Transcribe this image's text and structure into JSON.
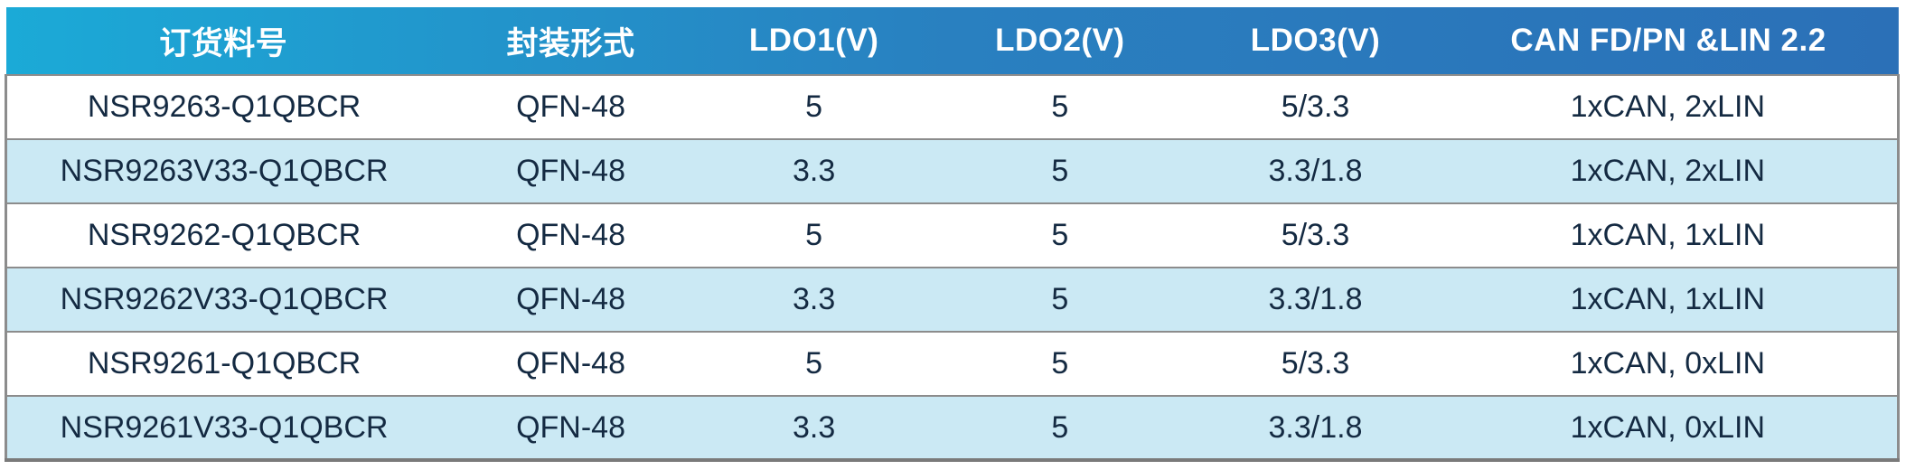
{
  "table": {
    "columns": [
      {
        "key": "part-number",
        "label": "订货料号"
      },
      {
        "key": "package",
        "label": "封装形式"
      },
      {
        "key": "ldo1",
        "label": "LDO1(V)"
      },
      {
        "key": "ldo2",
        "label": "LDO2(V)"
      },
      {
        "key": "ldo3",
        "label": "LDO3(V)"
      },
      {
        "key": "can-lin",
        "label": "CAN FD/PN &LIN 2.2"
      }
    ],
    "rows": [
      [
        "NSR9263-Q1QBCR",
        "QFN-48",
        "5",
        "5",
        "5/3.3",
        "1xCAN, 2xLIN"
      ],
      [
        "NSR9263V33-Q1QBCR",
        "QFN-48",
        "3.3",
        "5",
        "3.3/1.8",
        "1xCAN, 2xLIN"
      ],
      [
        "NSR9262-Q1QBCR",
        "QFN-48",
        "5",
        "5",
        "5/3.3",
        "1xCAN, 1xLIN"
      ],
      [
        "NSR9262V33-Q1QBCR",
        "QFN-48",
        "3.3",
        "5",
        "3.3/1.8",
        "1xCAN, 1xLIN"
      ],
      [
        "NSR9261-Q1QBCR",
        "QFN-48",
        "5",
        "5",
        "5/3.3",
        "1xCAN, 0xLIN"
      ],
      [
        "NSR9261V33-Q1QBCR",
        "QFN-48",
        "3.3",
        "5",
        "3.3/1.8",
        "1xCAN, 0xLIN"
      ]
    ]
  },
  "colors": {
    "header_gradient_start": "#1BAAD7",
    "header_gradient_end": "#2B70B7",
    "header_text": "#FFFFFF",
    "row_default": "#FFFFFF",
    "row_alternate": "#CBE9F4",
    "body_text": "#142A42",
    "border": "#8C8C8C"
  }
}
